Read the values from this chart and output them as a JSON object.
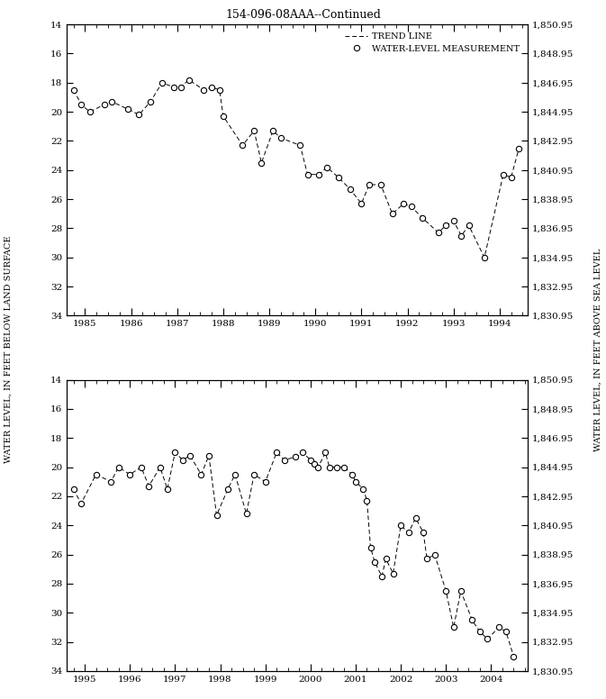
{
  "title": "154-096-08AAA--Continued",
  "ylabel_left": "WATER LEVEL, IN FEET BELOW LAND SURFACE",
  "ylabel_right": "WATER LEVEL, IN FEET ABOVE SEA LEVEL",
  "ylim_left": [
    14,
    34
  ],
  "top": {
    "xlim": [
      1984.6,
      1994.6
    ],
    "xticks": [
      1985,
      1986,
      1987,
      1988,
      1989,
      1990,
      1991,
      1992,
      1993,
      1994
    ],
    "data_x": [
      1984.75,
      1984.92,
      1985.1,
      1985.42,
      1985.58,
      1985.92,
      1986.17,
      1986.42,
      1986.67,
      1986.92,
      1987.08,
      1987.25,
      1987.58,
      1987.75,
      1987.92,
      1988.0,
      1988.42,
      1988.67,
      1988.83,
      1989.08,
      1989.25,
      1989.67,
      1989.83,
      1990.08,
      1990.25,
      1990.5,
      1990.75,
      1991.0,
      1991.17,
      1991.42,
      1991.67,
      1991.92,
      1992.08,
      1992.33,
      1992.67,
      1992.83,
      1993.0,
      1993.17,
      1993.33,
      1993.67,
      1994.08,
      1994.25,
      1994.42
    ],
    "data_y": [
      18.5,
      19.5,
      20.0,
      19.5,
      19.3,
      19.8,
      20.2,
      19.3,
      18.0,
      18.3,
      18.3,
      17.8,
      18.5,
      18.3,
      18.5,
      20.3,
      22.3,
      21.3,
      23.5,
      21.3,
      21.8,
      22.3,
      24.3,
      24.3,
      23.8,
      24.5,
      25.3,
      26.3,
      25.0,
      25.0,
      27.0,
      26.3,
      26.5,
      27.3,
      28.3,
      27.8,
      27.5,
      28.5,
      27.8,
      30.0,
      24.3,
      24.5,
      22.5
    ]
  },
  "bottom": {
    "xlim": [
      1994.6,
      2004.8
    ],
    "xticks": [
      1995,
      1996,
      1997,
      1998,
      1999,
      2000,
      2001,
      2002,
      2003,
      2004
    ],
    "data_x": [
      1994.75,
      1994.92,
      1995.25,
      1995.58,
      1995.75,
      1996.0,
      1996.25,
      1996.42,
      1996.67,
      1996.83,
      1997.0,
      1997.17,
      1997.33,
      1997.58,
      1997.75,
      1997.92,
      1998.17,
      1998.33,
      1998.58,
      1998.75,
      1999.0,
      1999.25,
      1999.42,
      1999.67,
      1999.83,
      2000.0,
      2000.08,
      2000.17,
      2000.33,
      2000.42,
      2000.58,
      2000.75,
      2000.92,
      2001.0,
      2001.17,
      2001.25,
      2001.33,
      2001.42,
      2001.58,
      2001.67,
      2001.83,
      2002.0,
      2002.17,
      2002.33,
      2002.5,
      2002.58,
      2002.75,
      2003.0,
      2003.17,
      2003.33,
      2003.58,
      2003.75,
      2003.92,
      2004.17,
      2004.33,
      2004.5
    ],
    "data_y": [
      21.5,
      22.5,
      20.5,
      21.0,
      20.0,
      20.5,
      20.0,
      21.3,
      20.0,
      21.5,
      19.0,
      19.5,
      19.2,
      20.5,
      19.2,
      23.3,
      21.5,
      20.5,
      23.2,
      20.5,
      21.0,
      19.0,
      19.5,
      19.3,
      19.0,
      19.5,
      19.8,
      20.0,
      19.0,
      20.0,
      20.0,
      20.0,
      20.5,
      21.0,
      21.5,
      22.3,
      25.5,
      26.5,
      27.5,
      26.3,
      27.3,
      24.0,
      24.5,
      23.5,
      24.5,
      26.3,
      26.0,
      28.5,
      31.0,
      28.5,
      30.5,
      31.3,
      31.8,
      31.0,
      31.3,
      33.0
    ]
  },
  "yticks_left": [
    14,
    16,
    18,
    20,
    22,
    24,
    26,
    28,
    30,
    32,
    34
  ],
  "yticks_right": [
    1850.95,
    1848.95,
    1846.95,
    1844.95,
    1842.95,
    1840.95,
    1838.95,
    1836.95,
    1834.95,
    1832.95,
    1830.95
  ]
}
